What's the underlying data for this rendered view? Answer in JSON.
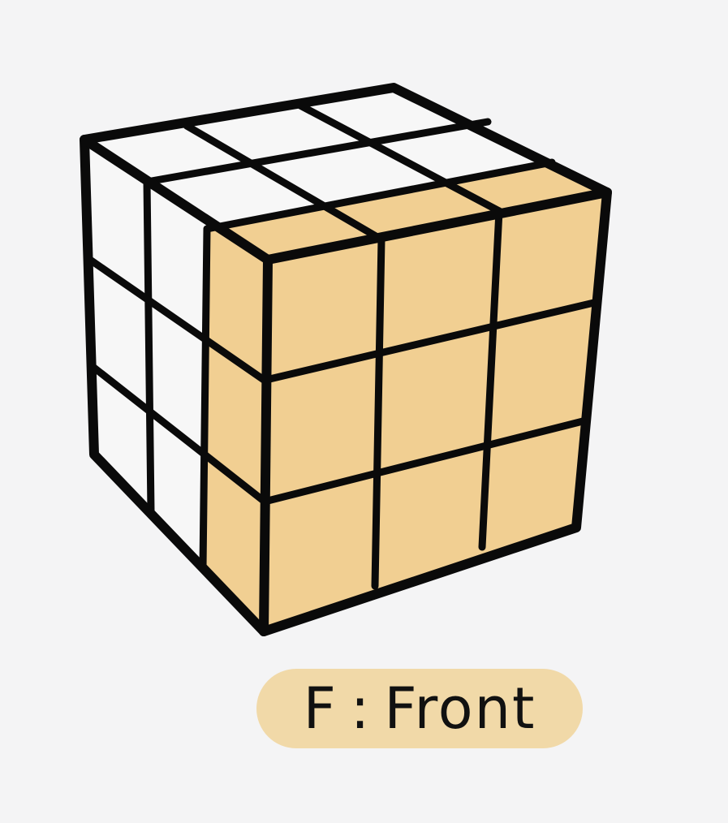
{
  "diagram": {
    "label": "F : Front",
    "colors": {
      "background": "#f4f4f5",
      "front_face": "#f1cf92",
      "other_faces": "#f7f7f7",
      "lines": "#0a0a0a",
      "label_pill": "#f1d9a8"
    }
  }
}
